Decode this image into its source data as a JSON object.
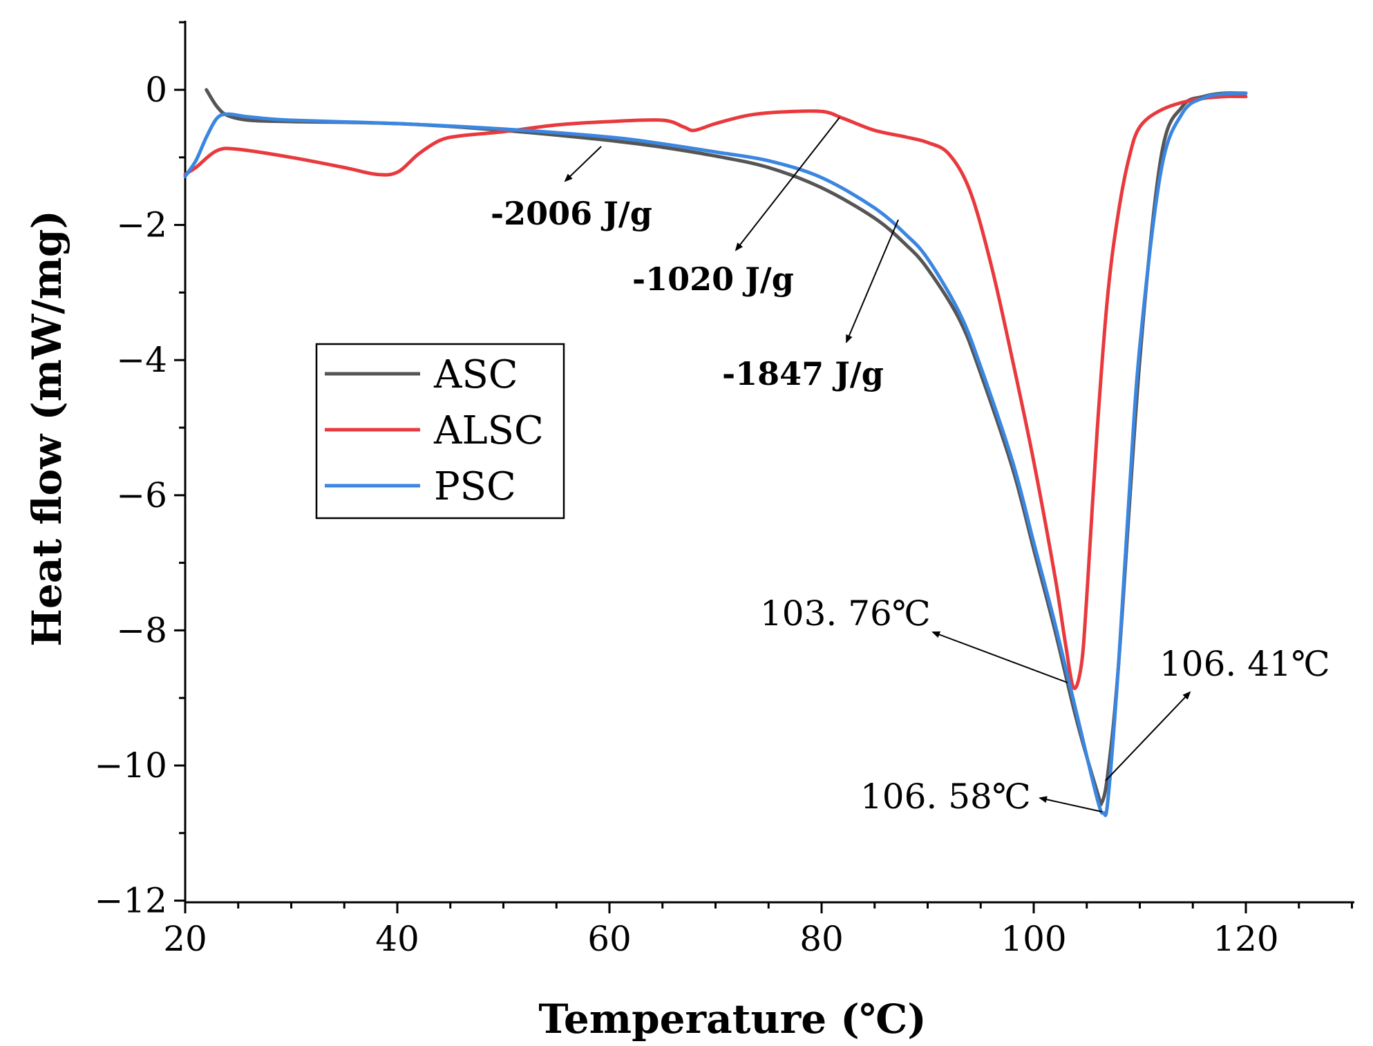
{
  "chart_data": {
    "type": "line",
    "title": "",
    "xlabel": "Temperature (℃)",
    "ylabel": "Heat flow (mW/mg)",
    "xlim": [
      20,
      130
    ],
    "ylim": [
      -12,
      1.0
    ],
    "x_ticks": [
      20,
      40,
      60,
      80,
      100,
      120
    ],
    "y_ticks": [
      0,
      -2,
      -4,
      -6,
      -8,
      -10,
      -12
    ],
    "x_tick_labels": [
      "20",
      "40",
      "60",
      "80",
      "100",
      "120"
    ],
    "y_tick_labels": [
      "0",
      "−2",
      "−4",
      "−6",
      "−8",
      "−10",
      "−12"
    ],
    "grid": false,
    "legend_position": "middle-left",
    "series": [
      {
        "name": "ASC",
        "color": "#555555",
        "x": [
          22,
          23,
          24,
          26,
          30,
          40,
          50,
          60,
          65,
          70,
          75,
          80,
          85,
          88,
          90,
          93,
          95,
          98,
          100,
          102,
          104,
          106,
          106.41,
          107,
          108,
          110,
          112,
          114,
          116,
          118,
          120
        ],
        "y": [
          0.0,
          -0.25,
          -0.38,
          -0.45,
          -0.47,
          -0.5,
          -0.6,
          -0.75,
          -0.85,
          -0.98,
          -1.15,
          -1.45,
          -1.9,
          -2.3,
          -2.65,
          -3.4,
          -4.2,
          -5.6,
          -6.8,
          -8.0,
          -9.3,
          -10.4,
          -10.55,
          -10.1,
          -8.5,
          -4.0,
          -1.0,
          -0.25,
          -0.1,
          -0.05,
          -0.05
        ]
      },
      {
        "name": "ALSC",
        "color": "#e8393d",
        "x": [
          20,
          21,
          23,
          25,
          30,
          35,
          38,
          40,
          42,
          44,
          46,
          50,
          55,
          60,
          65,
          67,
          68,
          70,
          73,
          76,
          80,
          82,
          85,
          88,
          90,
          92,
          94,
          96,
          98,
          100,
          102,
          103,
          103.76,
          104.5,
          105,
          106,
          107,
          108,
          109,
          110,
          112,
          115,
          118,
          120
        ],
        "y": [
          -1.25,
          -1.15,
          -0.9,
          -0.88,
          -1.0,
          -1.15,
          -1.25,
          -1.22,
          -0.95,
          -0.75,
          -0.68,
          -0.62,
          -0.52,
          -0.47,
          -0.45,
          -0.55,
          -0.6,
          -0.5,
          -0.38,
          -0.33,
          -0.32,
          -0.42,
          -0.6,
          -0.7,
          -0.78,
          -0.95,
          -1.5,
          -2.6,
          -4.0,
          -5.5,
          -7.2,
          -8.2,
          -8.85,
          -8.5,
          -7.5,
          -5.0,
          -3.0,
          -1.8,
          -1.0,
          -0.55,
          -0.3,
          -0.15,
          -0.1,
          -0.1
        ]
      },
      {
        "name": "PSC",
        "color": "#3a86e0",
        "x": [
          20,
          21,
          22,
          23,
          24,
          26,
          30,
          40,
          50,
          60,
          65,
          70,
          75,
          80,
          85,
          88,
          90,
          93,
          95,
          98,
          100,
          102,
          104,
          106,
          106.58,
          107,
          108,
          109,
          110,
          112,
          114,
          116,
          118,
          120
        ],
        "y": [
          -1.28,
          -1.05,
          -0.7,
          -0.42,
          -0.36,
          -0.4,
          -0.45,
          -0.5,
          -0.58,
          -0.7,
          -0.8,
          -0.92,
          -1.05,
          -1.3,
          -1.75,
          -2.15,
          -2.5,
          -3.3,
          -4.1,
          -5.5,
          -6.7,
          -7.9,
          -9.2,
          -10.5,
          -10.7,
          -10.5,
          -8.5,
          -6.0,
          -3.8,
          -1.2,
          -0.35,
          -0.12,
          -0.06,
          -0.05
        ]
      }
    ],
    "annotations": [
      {
        "text": "-2006 J/g",
        "bold": true
      },
      {
        "text": "-1020 J/g",
        "bold": true
      },
      {
        "text": "-1847 J/g",
        "bold": true
      },
      {
        "text": "103. 76℃",
        "bold": false
      },
      {
        "text": "106. 41℃",
        "bold": false
      },
      {
        "text": "106. 58℃",
        "bold": false
      }
    ]
  }
}
